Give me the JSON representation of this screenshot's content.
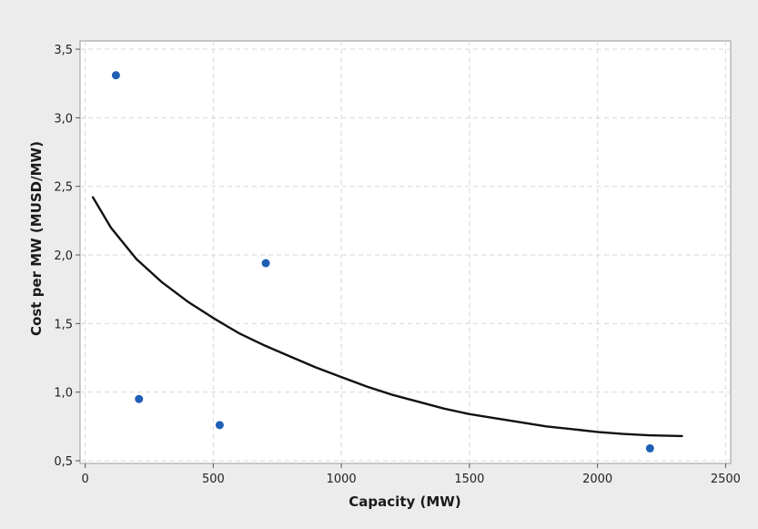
{
  "chart_data": {
    "type": "scatter",
    "title": "",
    "xlabel": "Capacity (MW)",
    "ylabel": "Cost per MW (MUSD/MW)",
    "xlim": [
      -20,
      2520
    ],
    "ylim": [
      0.48,
      3.56
    ],
    "x_ticks": [
      0,
      500,
      1000,
      1500,
      2000,
      2500
    ],
    "x_tick_labels": [
      "0",
      "500",
      "1000",
      "1500",
      "2000",
      "2500"
    ],
    "y_ticks": [
      0.5,
      1.0,
      1.5,
      2.0,
      2.5,
      3.0,
      3.5
    ],
    "y_tick_labels": [
      "0,5",
      "1,0",
      "1,5",
      "2,0",
      "2,5",
      "3,0",
      "3,5"
    ],
    "grid": true,
    "series": [
      {
        "type": "scatter",
        "points": [
          {
            "x": 120,
            "y": 3.31
          },
          {
            "x": 210,
            "y": 0.95
          },
          {
            "x": 525,
            "y": 0.76
          },
          {
            "x": 705,
            "y": 1.94
          },
          {
            "x": 2205,
            "y": 0.59
          }
        ]
      },
      {
        "type": "line",
        "points": [
          {
            "x": 30,
            "y": 2.42
          },
          {
            "x": 100,
            "y": 2.2
          },
          {
            "x": 200,
            "y": 1.97
          },
          {
            "x": 300,
            "y": 1.8
          },
          {
            "x": 400,
            "y": 1.66
          },
          {
            "x": 500,
            "y": 1.54
          },
          {
            "x": 600,
            "y": 1.43
          },
          {
            "x": 700,
            "y": 1.34
          },
          {
            "x": 800,
            "y": 1.26
          },
          {
            "x": 900,
            "y": 1.18
          },
          {
            "x": 1000,
            "y": 1.11
          },
          {
            "x": 1100,
            "y": 1.04
          },
          {
            "x": 1200,
            "y": 0.98
          },
          {
            "x": 1300,
            "y": 0.93
          },
          {
            "x": 1400,
            "y": 0.88
          },
          {
            "x": 1500,
            "y": 0.84
          },
          {
            "x": 1600,
            "y": 0.81
          },
          {
            "x": 1700,
            "y": 0.78
          },
          {
            "x": 1800,
            "y": 0.75
          },
          {
            "x": 1900,
            "y": 0.73
          },
          {
            "x": 2000,
            "y": 0.71
          },
          {
            "x": 2100,
            "y": 0.695
          },
          {
            "x": 2200,
            "y": 0.685
          },
          {
            "x": 2330,
            "y": 0.68
          }
        ]
      }
    ],
    "colors": {
      "point": "#1f5fb4",
      "line": "#111111",
      "grid": "#d8d8d8",
      "plot_bg": "#ffffff",
      "page_bg": "#ececec"
    }
  }
}
